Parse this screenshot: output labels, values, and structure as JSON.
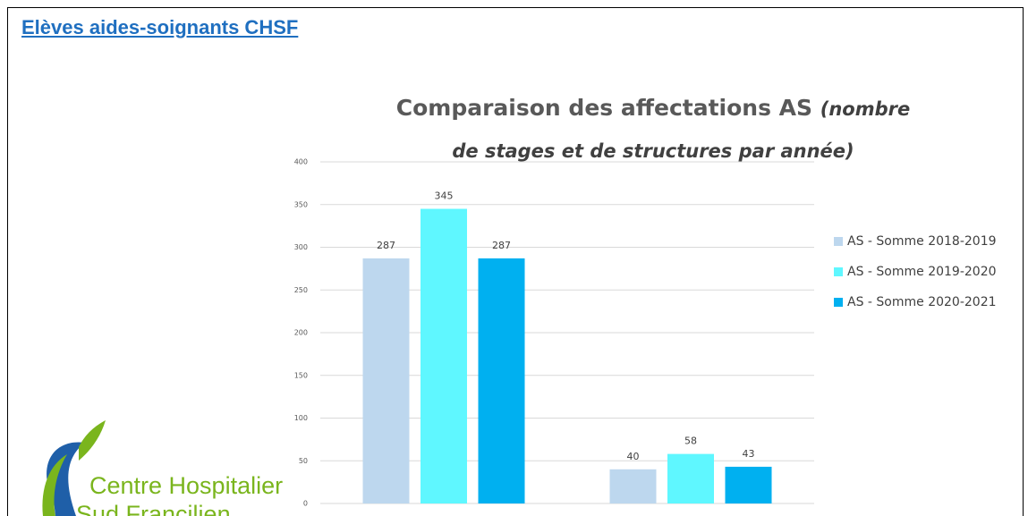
{
  "header": {
    "title": "Elèves aides-soignants CHSF"
  },
  "logo": {
    "line1": "Centre Hospitalier",
    "line2": "Sud Francilien"
  },
  "chart_data": {
    "type": "bar",
    "title": "Comparaison des affectations AS",
    "subtitle": "(nombre de stages et de structures par année)",
    "categories": [
      null,
      null
    ],
    "series": [
      {
        "name": "AS - Somme 2018-2019",
        "color": "#bdd7ee",
        "values": [
          287,
          40
        ]
      },
      {
        "name": "AS - Somme 2019-2020",
        "color": "#5ff7ff",
        "values": [
          345,
          58
        ]
      },
      {
        "name": "AS - Somme 2020-2021",
        "color": "#00b0f0",
        "values": [
          287,
          43
        ]
      }
    ],
    "ylim": [
      0,
      400
    ],
    "yticks": [
      0,
      50,
      100,
      150,
      200,
      250,
      300,
      350,
      400
    ],
    "grid": true,
    "legend": "right",
    "data_labels": true
  }
}
